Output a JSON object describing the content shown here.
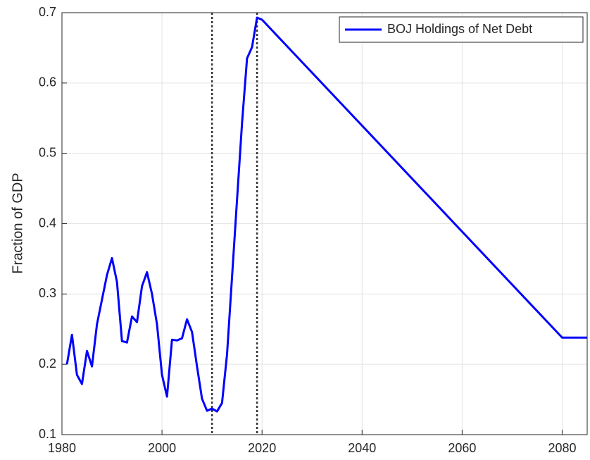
{
  "chart_data": {
    "type": "line",
    "ylabel": "Fraction of GDP",
    "x": [
      1981,
      1982,
      1983,
      1984,
      1985,
      1986,
      1987,
      1988,
      1989,
      1990,
      1991,
      1992,
      1993,
      1994,
      1995,
      1996,
      1997,
      1998,
      1999,
      2000,
      2001,
      2002,
      2003,
      2004,
      2005,
      2006,
      2007,
      2008,
      2009,
      2010,
      2011,
      2012,
      2013,
      2014,
      2015,
      2016,
      2017,
      2018,
      2019,
      2020,
      2080,
      2085
    ],
    "series": [
      {
        "name": "BOJ Holdings of Net Debt",
        "color": "#0000ff",
        "values": [
          0.2,
          0.242,
          0.185,
          0.172,
          0.219,
          0.197,
          0.257,
          0.292,
          0.327,
          0.351,
          0.317,
          0.233,
          0.231,
          0.268,
          0.26,
          0.311,
          0.331,
          0.3,
          0.257,
          0.185,
          0.154,
          0.235,
          0.234,
          0.237,
          0.264,
          0.246,
          0.197,
          0.151,
          0.134,
          0.137,
          0.133,
          0.145,
          0.214,
          0.324,
          0.434,
          0.543,
          0.635,
          0.651,
          0.693,
          0.69,
          0.238,
          0.238
        ]
      }
    ],
    "vlines": [
      2010,
      2019
    ],
    "xlim": [
      1980,
      2085
    ],
    "xticks": [
      1980,
      2000,
      2020,
      2040,
      2060,
      2080
    ],
    "ylim": [
      0.1,
      0.7
    ],
    "yticks": [
      0.1,
      0.2,
      0.3,
      0.4,
      0.5,
      0.6,
      0.7
    ],
    "grid": true,
    "legend": "northeast"
  }
}
